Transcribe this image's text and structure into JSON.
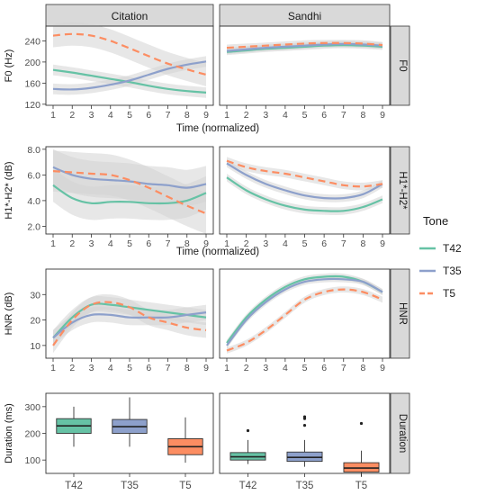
{
  "facets": {
    "columns": [
      "Citation",
      "Sandhi"
    ],
    "rows": [
      "F0",
      "H1*-H2*",
      "HNR",
      "Duration"
    ]
  },
  "legend": {
    "title": "Tone",
    "items": [
      {
        "label": "T42",
        "color": "#66c2a5",
        "dash": false
      },
      {
        "label": "T35",
        "color": "#8da0cb",
        "dash": false
      },
      {
        "label": "T5",
        "color": "#fc8d62",
        "dash": true
      }
    ]
  },
  "colors": {
    "T42": "#66c2a5",
    "T35": "#8da0cb",
    "T5": "#fc8d62",
    "band": "#d3d3d3",
    "strip": "#d9d9d9"
  },
  "chart_data": [
    {
      "type": "line",
      "row": "F0",
      "ylabel": "F0 (Hz)",
      "xlabel": "Time (normalized)",
      "xlim": [
        1,
        9
      ],
      "ylim": [
        118,
        268
      ],
      "yticks": [
        120,
        160,
        200,
        240
      ],
      "xticks": [
        1,
        2,
        3,
        4,
        5,
        6,
        7,
        8,
        9
      ],
      "panels": [
        {
          "facet": "Citation",
          "series": [
            {
              "name": "T42",
              "x": [
                1,
                2,
                3,
                4,
                5,
                6,
                7,
                8,
                9
              ],
              "y": [
                185,
                180,
                174,
                168,
                162,
                155,
                149,
                145,
                142
              ],
              "band": 10
            },
            {
              "name": "T35",
              "x": [
                1,
                2,
                3,
                4,
                5,
                6,
                7,
                8,
                9
              ],
              "y": [
                149,
                148,
                151,
                157,
                165,
                176,
                187,
                195,
                201
              ],
              "band": 10
            },
            {
              "name": "T5",
              "x": [
                1,
                2,
                3,
                4,
                5,
                6,
                7,
                8,
                9
              ],
              "y": [
                250,
                253,
                250,
                240,
                226,
                211,
                197,
                186,
                176
              ],
              "band": 22
            }
          ]
        },
        {
          "facet": "Sandhi",
          "series": [
            {
              "name": "T42",
              "x": [
                1,
                2,
                3,
                4,
                5,
                6,
                7,
                8,
                9
              ],
              "y": [
                219,
                222,
                225,
                227,
                229,
                231,
                232,
                231,
                229
              ],
              "band": 6
            },
            {
              "name": "T35",
              "x": [
                1,
                2,
                3,
                4,
                5,
                6,
                7,
                8,
                9
              ],
              "y": [
                221,
                224,
                227,
                229,
                231,
                233,
                234,
                233,
                231
              ],
              "band": 6
            },
            {
              "name": "T5",
              "x": [
                1,
                2,
                3,
                4,
                5,
                6,
                7,
                8,
                9
              ],
              "y": [
                227,
                229,
                231,
                233,
                235,
                236,
                236,
                235,
                232
              ],
              "band": 6
            }
          ]
        }
      ]
    },
    {
      "type": "line",
      "row": "H1*-H2*",
      "ylabel": "H1*-H2* (dB)",
      "xlabel": "Time (normalized)",
      "xlim": [
        1,
        9
      ],
      "ylim": [
        1.4,
        8.2
      ],
      "yticks": [
        2.0,
        4.0,
        6.0,
        8.0
      ],
      "ytick_labels": [
        "2.0",
        "4.0",
        "6.0",
        "8.0"
      ],
      "xticks": [
        1,
        2,
        3,
        4,
        5,
        6,
        7,
        8,
        9
      ],
      "panels": [
        {
          "facet": "Citation",
          "series": [
            {
              "name": "T42",
              "x": [
                1,
                2,
                3,
                4,
                5,
                6,
                7,
                8,
                9
              ],
              "y": [
                5.2,
                4.2,
                3.8,
                3.9,
                3.9,
                3.8,
                3.8,
                4.0,
                4.6
              ],
              "band": 1.3
            },
            {
              "name": "T35",
              "x": [
                1,
                2,
                3,
                4,
                5,
                6,
                7,
                8,
                9
              ],
              "y": [
                6.6,
                6.0,
                5.7,
                5.6,
                5.5,
                5.3,
                5.2,
                5.0,
                5.3
              ],
              "band": 1.4
            },
            {
              "name": "T5",
              "x": [
                1,
                2,
                3,
                4,
                5,
                6,
                7,
                8,
                9
              ],
              "y": [
                6.3,
                6.2,
                6.1,
                6.0,
                5.6,
                5.0,
                4.3,
                3.6,
                3.0
              ],
              "band": 1.6
            }
          ]
        },
        {
          "facet": "Sandhi",
          "series": [
            {
              "name": "T42",
              "x": [
                1,
                2,
                3,
                4,
                5,
                6,
                7,
                8,
                9
              ],
              "y": [
                5.8,
                4.8,
                4.1,
                3.6,
                3.3,
                3.2,
                3.2,
                3.5,
                4.1
              ],
              "band": 0.3
            },
            {
              "name": "T35",
              "x": [
                1,
                2,
                3,
                4,
                5,
                6,
                7,
                8,
                9
              ],
              "y": [
                6.9,
                6.0,
                5.3,
                4.8,
                4.4,
                4.2,
                4.2,
                4.5,
                5.3
              ],
              "band": 0.3
            },
            {
              "name": "T5",
              "x": [
                1,
                2,
                3,
                4,
                5,
                6,
                7,
                8,
                9
              ],
              "y": [
                7.1,
                6.6,
                6.3,
                6.1,
                5.8,
                5.5,
                5.2,
                5.1,
                5.3
              ],
              "band": 0.3
            }
          ]
        }
      ]
    },
    {
      "type": "line",
      "row": "HNR",
      "ylabel": "HNR (dB)",
      "xlabel": "Time (normalized)",
      "xlim": [
        1,
        9
      ],
      "ylim": [
        5,
        40
      ],
      "yticks": [
        10,
        20,
        30
      ],
      "xticks": [
        1,
        2,
        3,
        4,
        5,
        6,
        7,
        8,
        9
      ],
      "panels": [
        {
          "facet": "Citation",
          "series": [
            {
              "name": "T42",
              "x": [
                1,
                2,
                3,
                4,
                5,
                6,
                7,
                8,
                9
              ],
              "y": [
                13,
                21,
                26,
                26,
                25,
                24,
                23,
                22,
                21
              ],
              "band": 3
            },
            {
              "name": "T35",
              "x": [
                1,
                2,
                3,
                4,
                5,
                6,
                7,
                8,
                9
              ],
              "y": [
                13,
                19,
                22,
                22,
                21,
                21,
                21,
                22,
                23
              ],
              "band": 3
            },
            {
              "name": "T5",
              "x": [
                1,
                2,
                3,
                4,
                5,
                6,
                7,
                8,
                9
              ],
              "y": [
                10,
                20,
                26,
                27,
                25,
                21,
                19,
                17,
                16
              ],
              "band": 3
            }
          ]
        },
        {
          "facet": "Sandhi",
          "series": [
            {
              "name": "T42",
              "x": [
                1,
                2,
                3,
                4,
                5,
                6,
                7,
                8,
                9
              ],
              "y": [
                11,
                21,
                28,
                33,
                36,
                37,
                37,
                35,
                31
              ],
              "band": 1.2
            },
            {
              "name": "T35",
              "x": [
                1,
                2,
                3,
                4,
                5,
                6,
                7,
                8,
                9
              ],
              "y": [
                10,
                20,
                27,
                32,
                35,
                36,
                36,
                35,
                31
              ],
              "band": 1.2
            },
            {
              "name": "T5",
              "x": [
                1,
                2,
                3,
                4,
                5,
                6,
                7,
                8,
                9
              ],
              "y": [
                8,
                11,
                16,
                22,
                28,
                31,
                32,
                31,
                28
              ],
              "band": 1.2
            }
          ]
        }
      ]
    },
    {
      "type": "box",
      "row": "Duration",
      "ylabel": "Duration (ms)",
      "categories": [
        "T42",
        "T35",
        "T5"
      ],
      "ylim": [
        50,
        350
      ],
      "yticks": [
        100,
        200,
        300
      ],
      "panels": [
        {
          "facet": "Citation",
          "boxes": [
            {
              "name": "T42",
              "min": 150,
              "q1": 200,
              "median": 228,
              "q3": 255,
              "max": 300,
              "outliers": []
            },
            {
              "name": "T35",
              "min": 150,
              "q1": 200,
              "median": 225,
              "q3": 252,
              "max": 335,
              "outliers": []
            },
            {
              "name": "T5",
              "min": 90,
              "q1": 120,
              "median": 150,
              "q3": 180,
              "max": 260,
              "outliers": []
            }
          ]
        },
        {
          "facet": "Sandhi",
          "boxes": [
            {
              "name": "T42",
              "min": 85,
              "q1": 100,
              "median": 112,
              "q3": 128,
              "max": 175,
              "outliers": [
                210
              ]
            },
            {
              "name": "T35",
              "min": 75,
              "q1": 95,
              "median": 110,
              "q3": 130,
              "max": 175,
              "outliers": [
                230,
                255,
                262
              ]
            },
            {
              "name": "T5",
              "min": 40,
              "q1": 55,
              "median": 70,
              "q3": 90,
              "max": 135,
              "outliers": [
                237
              ]
            }
          ]
        }
      ]
    }
  ]
}
